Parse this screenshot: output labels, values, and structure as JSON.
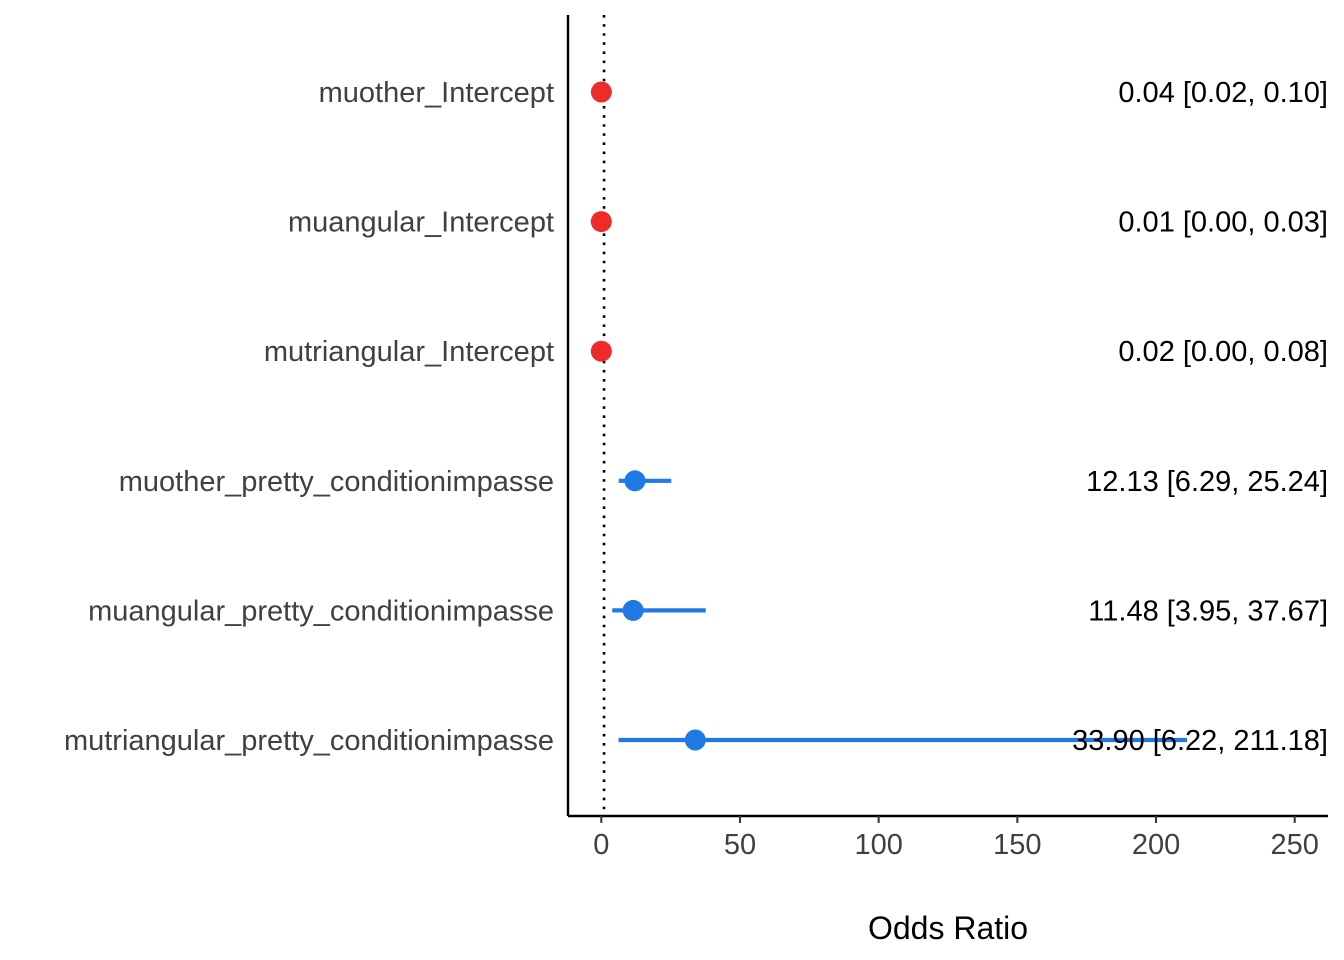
{
  "chart_data": {
    "type": "forest",
    "xlabel": "Odds Ratio",
    "ylabel": "",
    "xlim": [
      -12,
      262
    ],
    "x_ticks": [
      0,
      50,
      100,
      150,
      200,
      250
    ],
    "x_tick_labels": [
      "0",
      "50",
      "100",
      "150",
      "200",
      "250"
    ],
    "reference_line": {
      "x": 1,
      "style": "dotted",
      "color": "#000000"
    },
    "grid": false,
    "colors": {
      "negative": "#ee2a2a",
      "positive": "#1f7ae6"
    },
    "terms": [
      {
        "name": "muother_Intercept",
        "estimate": 0.04,
        "ci_low": 0.02,
        "ci_high": 0.1,
        "label": "0.04 [0.02, 0.10]",
        "direction": "negative"
      },
      {
        "name": "muangular_Intercept",
        "estimate": 0.01,
        "ci_low": 0.0,
        "ci_high": 0.03,
        "label": "0.01 [0.00, 0.03]",
        "direction": "negative"
      },
      {
        "name": "mutriangular_Intercept",
        "estimate": 0.02,
        "ci_low": 0.0,
        "ci_high": 0.08,
        "label": "0.02 [0.00, 0.08]",
        "direction": "negative"
      },
      {
        "name": "muother_pretty_conditionimpasse",
        "estimate": 12.13,
        "ci_low": 6.29,
        "ci_high": 25.24,
        "label": "12.13 [6.29, 25.24]",
        "direction": "positive"
      },
      {
        "name": "muangular_pretty_conditionimpasse",
        "estimate": 11.48,
        "ci_low": 3.95,
        "ci_high": 37.67,
        "label": "11.48 [3.95, 37.67]",
        "direction": "positive"
      },
      {
        "name": "mutriangular_pretty_conditionimpasse",
        "estimate": 33.9,
        "ci_low": 6.22,
        "ci_high": 211.18,
        "label": "33.90 [6.22, 211.18]",
        "direction": "positive"
      }
    ]
  }
}
